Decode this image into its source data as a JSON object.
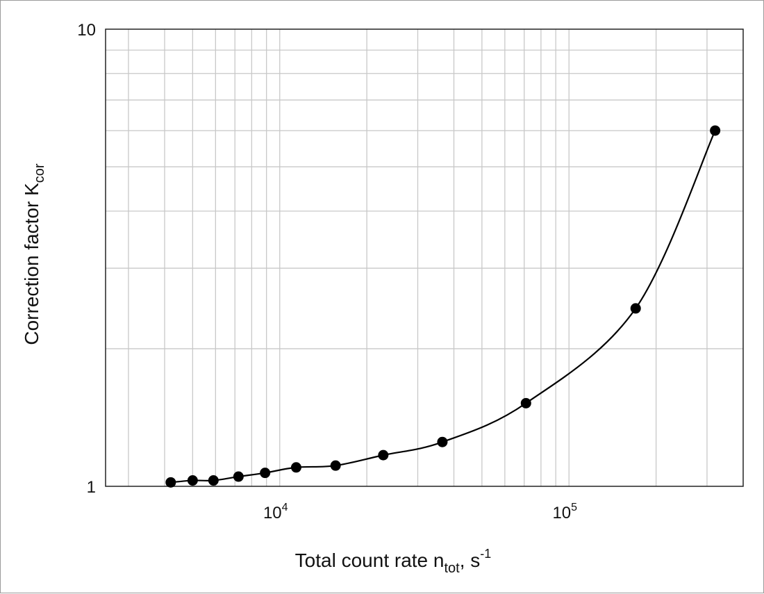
{
  "chart_data": {
    "type": "scatter",
    "title": "",
    "xlabel": {
      "main": "Total count rate n",
      "sub": "tot",
      "after": ", s",
      "sup": "-1"
    },
    "ylabel": {
      "main": "Correction factor K",
      "sub": "cor"
    },
    "x_scale": "log",
    "y_scale": "log",
    "xlim": [
      2500,
      400000
    ],
    "ylim": [
      1,
      10
    ],
    "grid": true,
    "x_ticks": [
      {
        "value": 10000,
        "base": "10",
        "exp": "4"
      },
      {
        "value": 100000,
        "base": "10",
        "exp": "5"
      }
    ],
    "y_ticks": [
      {
        "value": 1,
        "label": "1"
      },
      {
        "value": 10,
        "label": "10"
      }
    ],
    "series": [
      {
        "x": [
          4200,
          5000,
          5900,
          7200,
          8900,
          11400,
          15600,
          22800,
          36500,
          71000,
          170000,
          320000
        ],
        "y": [
          1.02,
          1.03,
          1.03,
          1.05,
          1.07,
          1.1,
          1.11,
          1.17,
          1.25,
          1.52,
          2.45,
          6.0
        ]
      }
    ],
    "line_color": "#000000",
    "marker_color": "#000000",
    "grid_color": "#c8c8c8"
  }
}
